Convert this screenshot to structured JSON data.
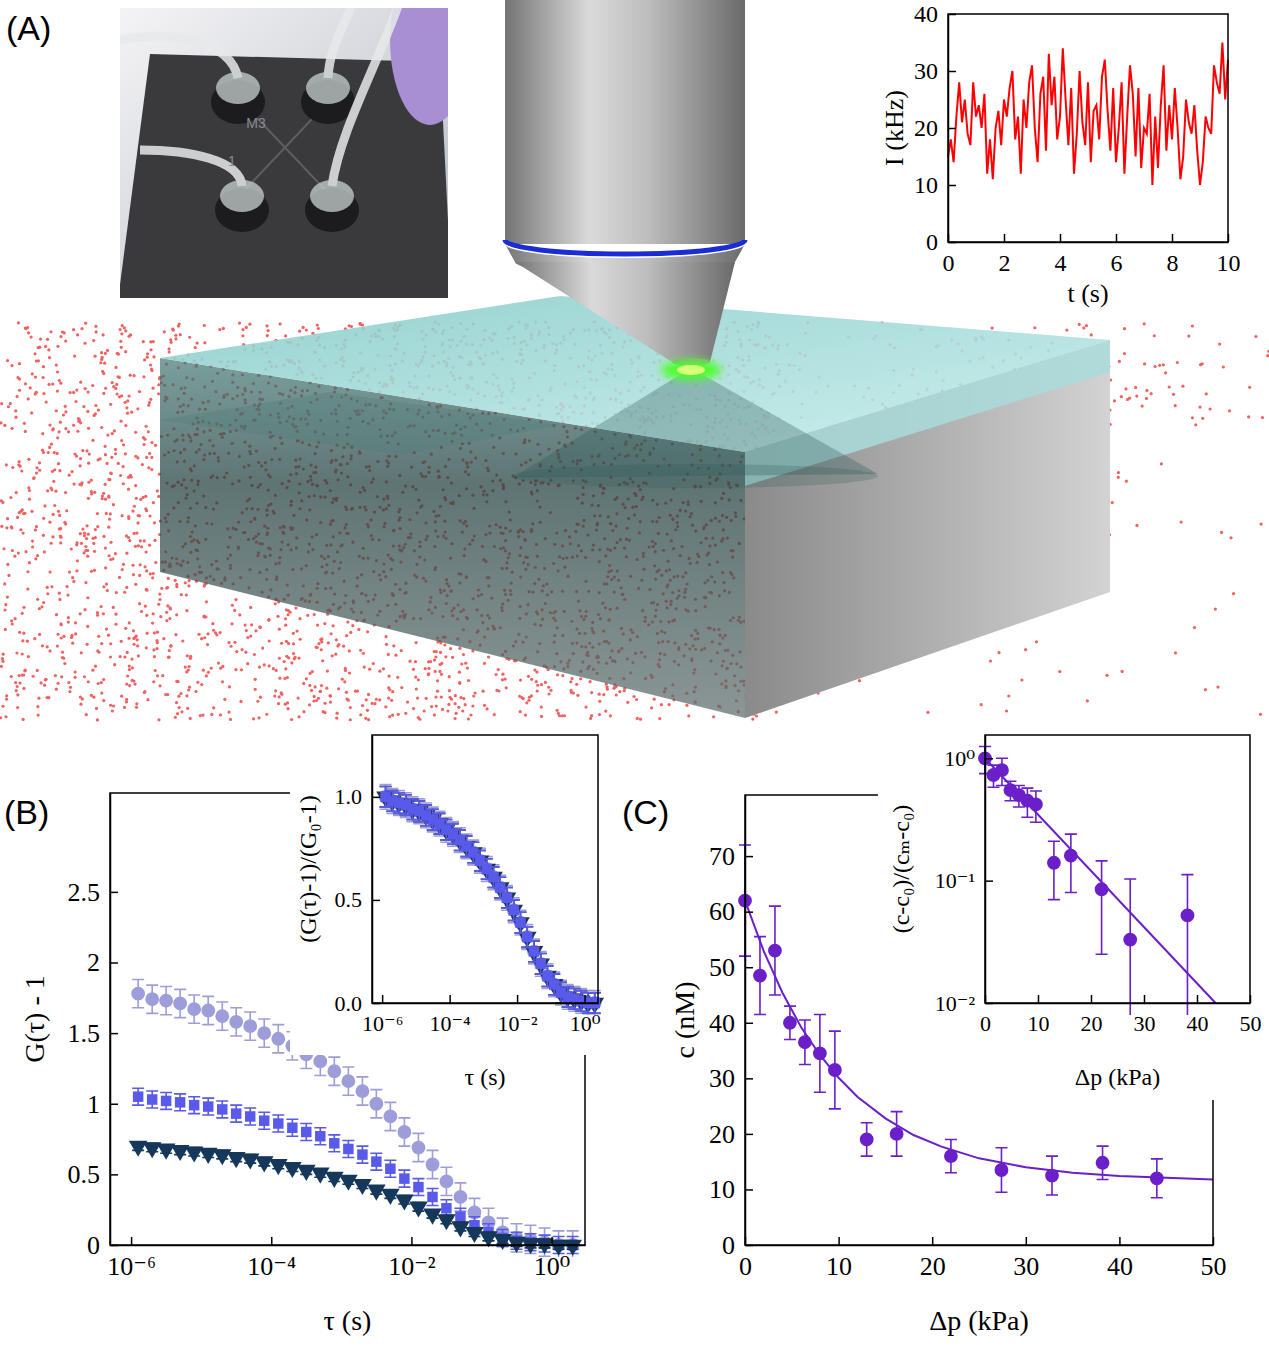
{
  "panel_labels": [
    "(A)",
    "(B)",
    "(C)"
  ],
  "illustration": {
    "chip_labels": [
      "M3",
      "1"
    ]
  },
  "chart_data": [
    {
      "type": "line",
      "xlabel": "t (s)",
      "ylabel": "I (kHz)",
      "color": "#ff0000",
      "x": [
        0,
        0.1,
        0.2,
        0.3,
        0.4,
        0.5,
        0.6,
        0.7,
        0.8,
        0.9,
        1,
        1.1,
        1.2,
        1.3,
        1.4,
        1.5,
        1.6,
        1.7,
        1.8,
        1.9,
        2,
        2.1,
        2.2,
        2.3,
        2.4,
        2.5,
        2.6,
        2.7,
        2.8,
        2.9,
        3,
        3.1,
        3.2,
        3.3,
        3.4,
        3.5,
        3.6,
        3.7,
        3.8,
        3.9,
        4,
        4.1,
        4.2,
        4.3,
        4.4,
        4.5,
        4.6,
        4.7,
        4.8,
        4.9,
        5,
        5.1,
        5.2,
        5.3,
        5.4,
        5.5,
        5.6,
        5.7,
        5.8,
        5.9,
        6,
        6.1,
        6.2,
        6.3,
        6.4,
        6.5,
        6.6,
        6.7,
        6.8,
        6.9,
        7,
        7.1,
        7.2,
        7.3,
        7.4,
        7.5,
        7.6,
        7.7,
        7.8,
        7.9,
        8,
        8.1,
        8.2,
        8.3,
        8.4,
        8.5,
        8.6,
        8.7,
        8.8,
        8.9,
        9,
        9.1,
        9.2,
        9.3,
        9.4,
        9.5,
        9.6,
        9.7,
        9.8,
        9.9,
        10
      ],
      "values": [
        15,
        18,
        14,
        22,
        28,
        21,
        25,
        19,
        17,
        28,
        22,
        24,
        20,
        26,
        12,
        18,
        11,
        20,
        23,
        17,
        25,
        22,
        27,
        30,
        18,
        22,
        12,
        25,
        20,
        28,
        31,
        20,
        14,
        26,
        29,
        16,
        33,
        24,
        29,
        18,
        22,
        34,
        25,
        17,
        27,
        12,
        19,
        30,
        21,
        17,
        28,
        14,
        23,
        24,
        18,
        29,
        32,
        23,
        16,
        27,
        14,
        20,
        28,
        12,
        22,
        31,
        26,
        15,
        27,
        13,
        20,
        19,
        26,
        10,
        22,
        13,
        24,
        31,
        16,
        24,
        18,
        27,
        20,
        11,
        15,
        25,
        21,
        19,
        24,
        16,
        10,
        14,
        22,
        20,
        19,
        31,
        28,
        26,
        35,
        25,
        32
      ],
      "xlim": [
        0,
        10
      ],
      "ylim": [
        0,
        40
      ],
      "xticks": [
        0,
        2,
        4,
        6,
        8,
        10
      ],
      "yticks": [
        0,
        10,
        20,
        30,
        40
      ]
    },
    {
      "type": "scatter",
      "xlabel": "τ (s)",
      "ylabel": "G(τ) - 1",
      "log": "x",
      "x": [
        1.26e-06,
        2e-06,
        3.16e-06,
        5.01e-06,
        7.94e-06,
        1.26e-05,
        2e-05,
        3.16e-05,
        5.01e-05,
        7.94e-05,
        0.000126,
        0.0002,
        0.000316,
        0.000501,
        0.000794,
        0.00126,
        0.002,
        0.00316,
        0.00501,
        0.00794,
        0.0126,
        0.02,
        0.0316,
        0.0501,
        0.0794,
        0.126,
        0.2,
        0.316,
        0.501,
        0.794,
        1.26,
        2
      ],
      "series": [
        {
          "color": "#9d9dd9",
          "marker": "circle",
          "error": 0.1,
          "values": [
            1.78,
            1.74,
            1.73,
            1.71,
            1.67,
            1.66,
            1.62,
            1.58,
            1.55,
            1.5,
            1.46,
            1.41,
            1.35,
            1.3,
            1.23,
            1.16,
            1.09,
            1.0,
            0.91,
            0.8,
            0.69,
            0.57,
            0.45,
            0.34,
            0.23,
            0.16,
            0.09,
            0.05,
            0.04,
            0.02,
            0.0,
            0.0
          ]
        },
        {
          "color": "#5a5aea",
          "marker": "square",
          "error": 0.06,
          "values": [
            1.05,
            1.03,
            1.02,
            1.01,
            0.99,
            0.98,
            0.96,
            0.93,
            0.91,
            0.88,
            0.86,
            0.83,
            0.8,
            0.77,
            0.72,
            0.68,
            0.64,
            0.59,
            0.54,
            0.47,
            0.41,
            0.34,
            0.26,
            0.2,
            0.14,
            0.09,
            0.05,
            0.03,
            0.02,
            0.01,
            0.0,
            0.0
          ]
        },
        {
          "color": "#14375a",
          "marker": "triangle-down",
          "error": 0.03,
          "values": [
            0.7,
            0.69,
            0.68,
            0.67,
            0.66,
            0.65,
            0.64,
            0.62,
            0.61,
            0.59,
            0.57,
            0.55,
            0.53,
            0.51,
            0.48,
            0.46,
            0.43,
            0.39,
            0.36,
            0.32,
            0.27,
            0.22,
            0.18,
            0.13,
            0.09,
            0.06,
            0.04,
            0.02,
            0.01,
            0.01,
            0.0,
            0.0
          ]
        }
      ],
      "xlim": [
        5e-07,
        3
      ],
      "ylim": [
        0,
        3.2
      ],
      "xticks": [
        {
          "value": 1e-06,
          "label": "10⁻⁶"
        },
        {
          "value": 0.0001,
          "label": "10⁻⁴"
        },
        {
          "value": 0.01,
          "label": "10⁻²"
        },
        {
          "value": 1,
          "label": "10⁰"
        }
      ],
      "yticks": [
        0,
        0.5,
        1,
        1.5,
        2,
        2.5
      ]
    },
    {
      "type": "scatter",
      "xlabel": "τ (s)",
      "ylabel": "(G(τ)-1)/(G₀-1)",
      "log": "x",
      "x": [
        1.26e-06,
        2e-06,
        3.16e-06,
        5.01e-06,
        7.94e-06,
        1.26e-05,
        2e-05,
        3.16e-05,
        5.01e-05,
        7.94e-05,
        0.000126,
        0.0002,
        0.000316,
        0.000501,
        0.000794,
        0.00126,
        0.002,
        0.00316,
        0.00501,
        0.00794,
        0.0126,
        0.02,
        0.0316,
        0.0501,
        0.0794,
        0.126,
        0.2,
        0.316,
        0.501,
        0.794,
        1.26,
        2
      ],
      "series": [
        {
          "color": "#9d9dd9",
          "marker": "circle",
          "error": 0.06,
          "values": [
            1.0,
            0.98,
            0.97,
            0.96,
            0.94,
            0.93,
            0.91,
            0.89,
            0.87,
            0.84,
            0.82,
            0.79,
            0.76,
            0.73,
            0.69,
            0.65,
            0.61,
            0.56,
            0.51,
            0.45,
            0.39,
            0.32,
            0.25,
            0.19,
            0.13,
            0.09,
            0.05,
            0.03,
            0.02,
            0.01,
            0.0,
            0.0
          ]
        },
        {
          "color": "#14375a",
          "marker": "triangle-down",
          "error": 0.05,
          "values": [
            1.0,
            0.98,
            0.97,
            0.96,
            0.94,
            0.93,
            0.91,
            0.89,
            0.87,
            0.84,
            0.82,
            0.79,
            0.76,
            0.73,
            0.69,
            0.65,
            0.61,
            0.56,
            0.51,
            0.45,
            0.39,
            0.32,
            0.25,
            0.19,
            0.13,
            0.09,
            0.05,
            0.03,
            0.02,
            0.01,
            0.0,
            0.0
          ]
        },
        {
          "color": "#5a5aea",
          "marker": "square",
          "error": 0.05,
          "values": [
            1.0,
            0.98,
            0.97,
            0.96,
            0.94,
            0.93,
            0.91,
            0.89,
            0.87,
            0.84,
            0.82,
            0.79,
            0.76,
            0.73,
            0.69,
            0.65,
            0.61,
            0.56,
            0.51,
            0.45,
            0.39,
            0.32,
            0.25,
            0.19,
            0.13,
            0.09,
            0.05,
            0.03,
            0.02,
            0.01,
            0.0,
            0.0
          ]
        }
      ],
      "xlim": [
        5e-07,
        2.5
      ],
      "ylim": [
        0,
        1.3
      ],
      "xticks": [
        {
          "value": 1e-06,
          "label": "10⁻⁶"
        },
        {
          "value": 0.0001,
          "label": "10⁻⁴"
        },
        {
          "value": 0.01,
          "label": "10⁻²"
        },
        {
          "value": 1,
          "label": "10⁰"
        }
      ],
      "yticks": [
        {
          "value": 0,
          "label": "0.0"
        },
        0.5,
        {
          "value": 1,
          "label": "1.0"
        }
      ]
    },
    {
      "type": "scatter",
      "xlabel": "Δp (kPa)",
      "ylabel": "c (nM)",
      "series": [
        {
          "type": "scatter",
          "color": "#6a1fc8",
          "marker": "circle",
          "x": [
            0,
            1.6,
            3.2,
            4.8,
            6.4,
            8,
            9.6,
            13,
            16.2,
            22,
            27.4,
            32.8,
            38.2,
            44
          ],
          "values": [
            62,
            48.5,
            53,
            40,
            36.5,
            34.5,
            31.5,
            19,
            20,
            16,
            13.5,
            12.5,
            14.8,
            12
          ],
          "errors": [
            10,
            7,
            8,
            3,
            4,
            7,
            7,
            3,
            4,
            3,
            4,
            3.5,
            3,
            3.5
          ]
        },
        {
          "type": "line",
          "color": "#6a1fc8",
          "x": [
            0,
            2,
            4,
            6,
            8,
            10,
            12,
            15,
            18,
            21,
            25,
            30,
            35,
            40,
            45,
            50
          ],
          "values": [
            62,
            52.9,
            45.4,
            39.2,
            34.2,
            30.1,
            26.7,
            22.8,
            19.8,
            17.7,
            15.6,
            14.0,
            13.0,
            12.4,
            12.1,
            11.8
          ]
        }
      ],
      "xlim": [
        0,
        50
      ],
      "ylim": [
        0,
        81
      ],
      "xticks": [
        0,
        10,
        20,
        30,
        40,
        50
      ],
      "yticks": [
        0,
        10,
        20,
        30,
        40,
        50,
        60,
        70
      ]
    },
    {
      "type": "scatter",
      "xlabel": "Δp (kPa)",
      "ylabel": "(c-c₀)/(cₘ-c₀)",
      "log": "y",
      "series": [
        {
          "type": "scatter",
          "color": "#6a1fc8",
          "marker": "circle",
          "x": [
            0,
            1.6,
            3.2,
            4.8,
            6.4,
            8,
            9.6,
            13,
            16.2,
            22,
            27.4,
            38.2
          ],
          "values": [
            1.0,
            0.73,
            0.8,
            0.55,
            0.5,
            0.45,
            0.42,
            0.14,
            0.16,
            0.085,
            0.033,
            0.052
          ],
          "errors": [
            0.25,
            0.15,
            0.2,
            0.1,
            0.1,
            0.12,
            0.12,
            0.07,
            0.08,
            0.06,
            0.07,
            0.06
          ]
        },
        {
          "type": "line",
          "color": "#6a1fc8",
          "x": [
            0,
            43.5
          ],
          "values": [
            1,
            0.01
          ]
        }
      ],
      "xlim": [
        0,
        50
      ],
      "ylim": [
        0.01,
        1.55
      ],
      "xticks": [
        0,
        10,
        20,
        30,
        40,
        50
      ],
      "yticks": [
        {
          "value": 0.01,
          "label": "10⁻²"
        },
        {
          "value": 0.1,
          "label": "10⁻¹"
        },
        {
          "value": 1,
          "label": "10⁰"
        }
      ]
    }
  ]
}
